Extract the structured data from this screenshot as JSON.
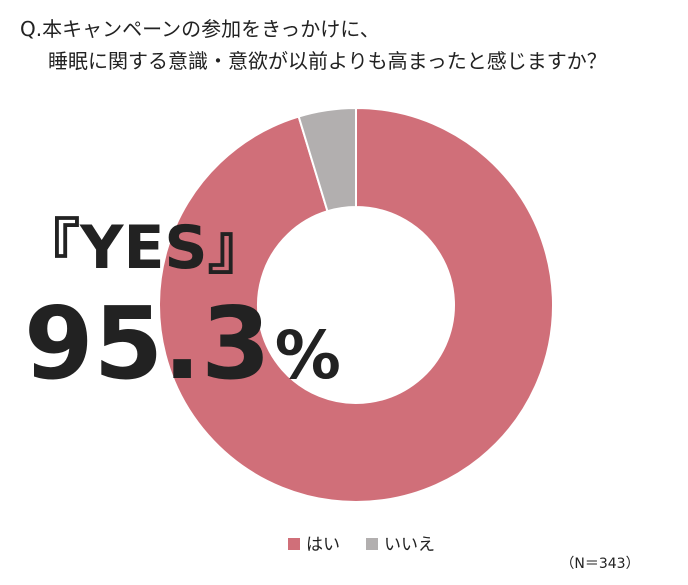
{
  "chart_data": {
    "type": "donut",
    "title": "Q.本キャンペーンの参加をきっかけに、",
    "subtitle": "睡眠に関する意識・意欲が以前よりも高まったと感じますか？",
    "categories": [
      "はい",
      "いいえ"
    ],
    "values": [
      95.3,
      4.7
    ],
    "colors": [
      "#d06f79",
      "#b2afaf"
    ],
    "annotation": {
      "label": "『YES』",
      "unit": "%"
    },
    "note": "（N＝343）"
  }
}
